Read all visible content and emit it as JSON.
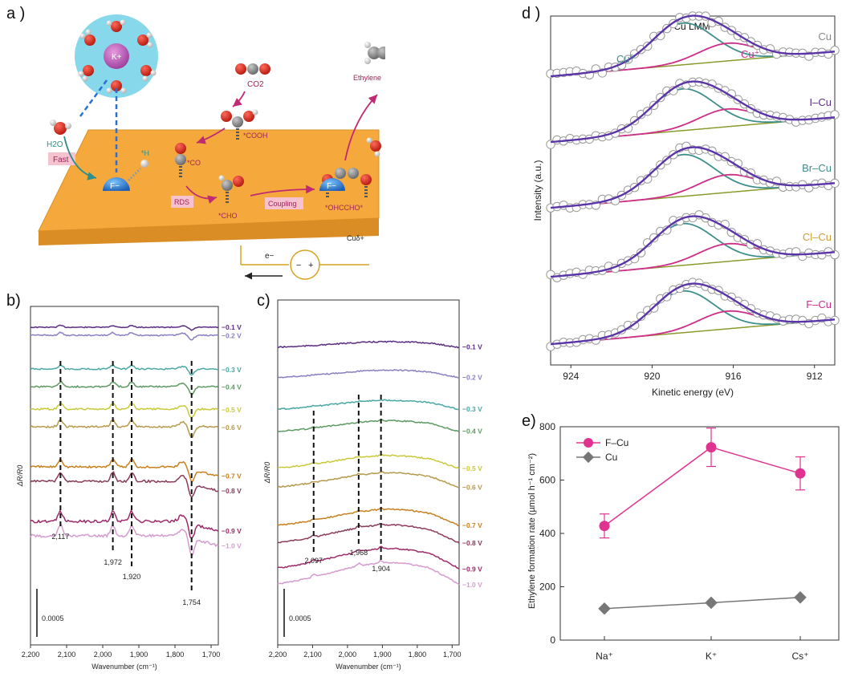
{
  "panel_a": {
    "label": "a )",
    "cation": "K+",
    "h2o": "H2O",
    "fast": "Fast",
    "fluoride": "F−",
    "h_ads": "*H",
    "co2": "CO2",
    "cooh": "*COOH",
    "co": "*CO",
    "rds": "RDS",
    "cho": "*CHO",
    "coupling": "Coupling",
    "ohccho": "*OHCCHO*",
    "ethylene": "Ethylene",
    "electron": "e−",
    "minus": "−",
    "plus": "+",
    "surface": "Cuδ+"
  },
  "chart_data": [
    {
      "type": "line",
      "panel_label": "b)",
      "xlabel": "Wavenumber (cm⁻¹)",
      "ylabel": "ΔR/R0",
      "xlim": [
        2200,
        1680
      ],
      "xticks": [
        "2,200",
        "2,100",
        "2,000",
        "1,900",
        "1,800",
        "1,700"
      ],
      "scale_bar": "0.0005",
      "peaks": [
        {
          "x": 2117,
          "label": "2,117"
        },
        {
          "x": 1972,
          "label": "1,972"
        },
        {
          "x": 1920,
          "label": "1,920"
        },
        {
          "x": 1754,
          "label": "1,754"
        }
      ],
      "series": [
        {
          "name": "−0.1 V",
          "color": "#5b2c83"
        },
        {
          "name": "−0.2 V",
          "color": "#8a7fc0"
        },
        {
          "name": "−0.3 V",
          "color": "#4aa8a4"
        },
        {
          "name": "−0.4 V",
          "color": "#5c9a62"
        },
        {
          "name": "−0.5 V",
          "color": "#c9c93a"
        },
        {
          "name": "−0.6 V",
          "color": "#b59a4c"
        },
        {
          "name": "−0.7 V",
          "color": "#c9801f"
        },
        {
          "name": "−0.8 V",
          "color": "#8a3a5a"
        },
        {
          "name": "−0.9 V",
          "color": "#9e2a6a"
        },
        {
          "name": "−1.0 V",
          "color": "#d59bd0"
        }
      ]
    },
    {
      "type": "line",
      "panel_label": "c)",
      "xlabel": "Wavenumber (cm⁻¹)",
      "ylabel": "ΔR/R0",
      "xlim": [
        2200,
        1680
      ],
      "xticks": [
        "2,200",
        "2,100",
        "2,000",
        "1,900",
        "1,800",
        "1,700"
      ],
      "scale_bar": "0.0005",
      "peaks": [
        {
          "x": 2097,
          "label": "2,097"
        },
        {
          "x": 1968,
          "label": "1,968"
        },
        {
          "x": 1904,
          "label": "1,904"
        }
      ],
      "series": [
        {
          "name": "−0.1 V",
          "color": "#5b2c83"
        },
        {
          "name": "−0.2 V",
          "color": "#8a7fc0"
        },
        {
          "name": "−0.3 V",
          "color": "#4aa8a4"
        },
        {
          "name": "−0.4 V",
          "color": "#5c9a62"
        },
        {
          "name": "−0.5 V",
          "color": "#c9c93a"
        },
        {
          "name": "−0.6 V",
          "color": "#b59a4c"
        },
        {
          "name": "−0.7 V",
          "color": "#c9801f"
        },
        {
          "name": "−0.8 V",
          "color": "#8a3a5a"
        },
        {
          "name": "−0.9 V",
          "color": "#9e2a6a"
        },
        {
          "name": "−1.0 V",
          "color": "#d59bd0"
        }
      ]
    },
    {
      "type": "line",
      "panel_label": "d )",
      "title": "Cu LMM",
      "xlabel": "Kinetic energy (eV)",
      "ylabel": "Intensity (a.u.)",
      "xlim": [
        925,
        911
      ],
      "xticks": [
        924,
        920,
        916,
        912
      ],
      "component_labels": {
        "cu0": "Cu⁰",
        "cuplus": "Cu⁺"
      },
      "colors": {
        "envelope": "#5b34a8",
        "cu0": "#3d8f8c",
        "cuplus": "#cc2e8a",
        "background": "#8a9a2a"
      },
      "samples": [
        {
          "name": "Cu",
          "color": "#888888"
        },
        {
          "name": "I–Cu",
          "color": "#5b2c83"
        },
        {
          "name": "Br–Cu",
          "color": "#3d8f8c"
        },
        {
          "name": "Cl–Cu",
          "color": "#c9a23a"
        },
        {
          "name": "F–Cu",
          "color": "#cc2e8a"
        }
      ]
    },
    {
      "type": "line",
      "panel_label": "e)",
      "ylabel": "Ethylene formation rate (µmol h⁻¹ cm⁻²)",
      "categories": [
        "Na⁺",
        "K⁺",
        "Cs⁺"
      ],
      "ylim": [
        0,
        800
      ],
      "yticks": [
        0,
        200,
        400,
        600,
        800
      ],
      "legend": "top-left",
      "series": [
        {
          "name": "F–Cu",
          "values": [
            428,
            723,
            625
          ],
          "errors": [
            45,
            72,
            62
          ],
          "color": "#e0338f"
        },
        {
          "name": "Cu",
          "values": [
            118,
            140,
            160
          ],
          "errors": [
            0,
            0,
            0
          ],
          "color": "#777777"
        }
      ]
    }
  ]
}
